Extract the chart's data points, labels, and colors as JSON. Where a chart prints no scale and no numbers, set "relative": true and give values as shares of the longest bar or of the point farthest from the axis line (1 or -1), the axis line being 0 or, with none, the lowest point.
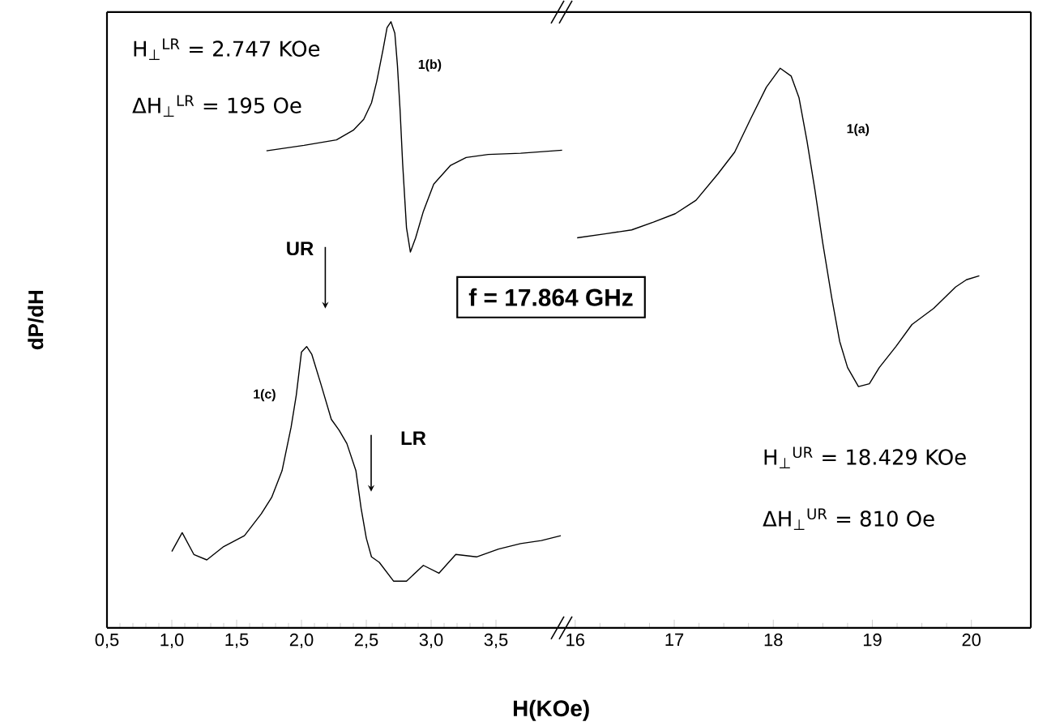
{
  "chart_data": [
    {
      "type": "line",
      "xlabel": "H(KOe)",
      "ylabel": "dP/dH",
      "relative": true,
      "xlim": [
        0.5,
        4.05
      ],
      "xticks": [
        {
          "value": 0.5,
          "label": "0,5"
        },
        {
          "value": 1.0,
          "label": "1,0"
        },
        {
          "value": 1.5,
          "label": "1,5"
        },
        {
          "value": 2.0,
          "label": "2,0"
        },
        {
          "value": 2.5,
          "label": "2,5"
        },
        {
          "value": 3.0,
          "label": "3,0"
        },
        {
          "value": 3.5,
          "label": "3,5"
        }
      ],
      "series": [
        {
          "name": "1(b)",
          "color": "#000000",
          "x": [
            1.73,
            2.02,
            2.27,
            2.4,
            2.48,
            2.54,
            2.58,
            2.63,
            2.66,
            2.69,
            2.72,
            2.74,
            2.76,
            2.78,
            2.81,
            2.84,
            2.88,
            2.94,
            3.02,
            3.15,
            3.27,
            3.44,
            3.69,
            4.01
          ],
          "values": [
            0.787,
            0.796,
            0.805,
            0.821,
            0.839,
            0.866,
            0.901,
            0.955,
            0.99,
            1.0,
            0.981,
            0.928,
            0.856,
            0.767,
            0.66,
            0.62,
            0.643,
            0.687,
            0.732,
            0.763,
            0.776,
            0.781,
            0.783,
            0.788
          ]
        },
        {
          "name": "1(c)",
          "color": "#000000",
          "x": [
            1.0,
            1.08,
            1.17,
            1.27,
            1.4,
            1.56,
            1.69,
            1.77,
            1.85,
            1.92,
            1.96,
            2.0,
            2.04,
            2.08,
            2.15,
            2.23,
            2.29,
            2.35,
            2.42,
            2.46,
            2.5,
            2.54,
            2.6,
            2.71,
            2.81,
            2.94,
            3.06,
            3.19,
            3.35,
            3.52,
            3.69,
            3.85,
            4.0
          ],
          "values": [
            0.126,
            0.157,
            0.121,
            0.112,
            0.134,
            0.152,
            0.188,
            0.215,
            0.259,
            0.331,
            0.384,
            0.455,
            0.464,
            0.451,
            0.402,
            0.344,
            0.326,
            0.304,
            0.259,
            0.197,
            0.148,
            0.117,
            0.108,
            0.077,
            0.077,
            0.103,
            0.09,
            0.121,
            0.117,
            0.13,
            0.139,
            0.144,
            0.152
          ]
        }
      ],
      "annotations": [
        "H$_{⊥}$$^{LR}$ = 2.747 KOe",
        "ΔH$_{⊥}$$^{LR}$ = 195 Oe",
        "UR",
        "LR",
        "f = 17.864 GHz"
      ]
    },
    {
      "type": "line",
      "relative": true,
      "xlim": [
        15.92,
        20.6
      ],
      "xticks": [
        16,
        17,
        18,
        19,
        20
      ],
      "series": [
        {
          "name": "1(a)",
          "color": "#000000",
          "x": [
            16.02,
            16.3,
            16.57,
            16.79,
            17.01,
            17.22,
            17.44,
            17.61,
            17.77,
            17.93,
            18.07,
            18.18,
            18.26,
            18.34,
            18.42,
            18.5,
            18.59,
            18.67,
            18.75,
            18.86,
            18.97,
            19.07,
            19.24,
            19.4,
            19.62,
            19.84,
            19.95,
            20.08
          ],
          "values": [
            0.697,
            0.704,
            0.711,
            0.725,
            0.74,
            0.764,
            0.811,
            0.85,
            0.909,
            0.966,
            1.0,
            0.986,
            0.947,
            0.87,
            0.783,
            0.687,
            0.59,
            0.512,
            0.465,
            0.431,
            0.436,
            0.465,
            0.503,
            0.542,
            0.571,
            0.609,
            0.622,
            0.629
          ]
        }
      ],
      "annotations": [
        "H$_{⊥}$$^{UR}$ = 18.429 KOe",
        "ΔH$_{⊥}$$^{UR}$ = 810 Oe"
      ]
    }
  ]
}
